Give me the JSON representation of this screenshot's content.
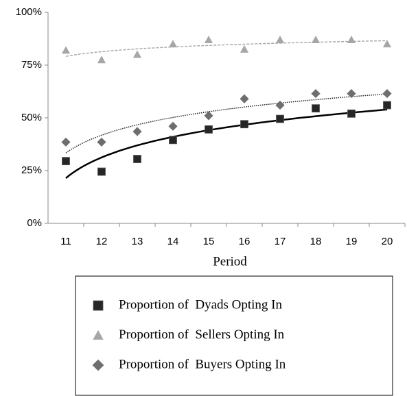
{
  "chart_data": {
    "type": "scatter",
    "xlabel": "Period",
    "categories": [
      11,
      12,
      13,
      14,
      15,
      16,
      17,
      18,
      19,
      20
    ],
    "ylim": [
      0,
      100
    ],
    "yticks": [
      {
        "value": 0,
        "label": "0%"
      },
      {
        "value": 25,
        "label": "25%"
      },
      {
        "value": 50,
        "label": "50%"
      },
      {
        "value": 75,
        "label": "75%"
      },
      {
        "value": 100,
        "label": "100%"
      }
    ],
    "series": [
      {
        "name": "Proportion of  Dyads Opting In",
        "color": "#262626",
        "marker": "square",
        "trendline": "solid",
        "trendline_color": "#000000",
        "values": [
          29.5,
          24.5,
          30.5,
          39.5,
          44.5,
          47,
          49.5,
          54.5,
          52,
          56
        ]
      },
      {
        "name": "Proportion of  Sellers Opting In",
        "color": "#a6a6a6",
        "marker": "triangle",
        "trendline": "dashed",
        "trendline_color": "#aaaaaa",
        "values": [
          82,
          77.5,
          80,
          85,
          87,
          82.5,
          87,
          87,
          87,
          85
        ]
      },
      {
        "name": "Proportion of  Buyers Opting In",
        "color": "#6e6e6e",
        "marker": "diamond",
        "trendline": "dotted",
        "trendline_color": "#222222",
        "values": [
          38.5,
          38.5,
          43.5,
          46,
          51,
          59,
          56,
          61.5,
          61.5,
          61.5
        ]
      }
    ]
  }
}
